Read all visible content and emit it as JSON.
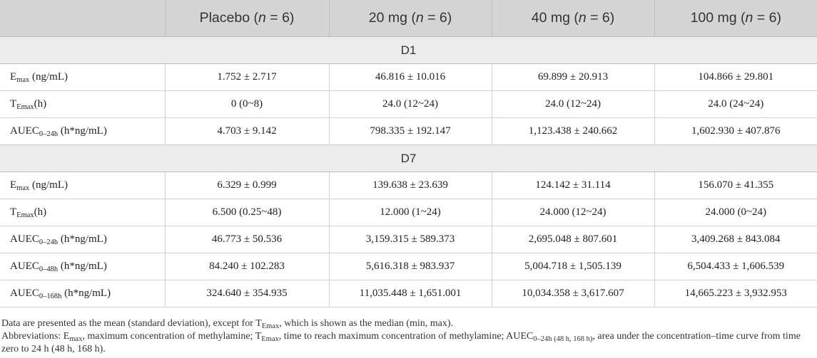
{
  "header": {
    "blank": "",
    "cols": [
      {
        "label": "Placebo (",
        "n": "n",
        "rest": " = 6)"
      },
      {
        "label": "20 mg (",
        "n": "n",
        "rest": " = 6)"
      },
      {
        "label": "40 mg (",
        "n": "n",
        "rest": " = 6)"
      },
      {
        "label": "100 mg (",
        "n": "n",
        "rest": " = 6)"
      }
    ]
  },
  "sections": [
    {
      "title": "D1",
      "rows": [
        {
          "base": "E",
          "sub": "max",
          "unit": " (ng/mL)",
          "values": [
            "1.752 ± 2.717",
            "46.816 ± 10.016",
            "69.899 ± 20.913",
            "104.866 ± 29.801"
          ]
        },
        {
          "base": "T",
          "sub": "Emax",
          "unit": "(h)",
          "values": [
            "0 (0~8)",
            "24.0 (12~24)",
            "24.0 (12~24)",
            "24.0 (24~24)"
          ]
        },
        {
          "base": "AUEC",
          "sub": "0–24h",
          "unit": " (h*ng/mL)",
          "values": [
            "4.703 ± 9.142",
            "798.335 ± 192.147",
            "1,123.438 ± 240.662",
            "1,602.930 ± 407.876"
          ]
        }
      ]
    },
    {
      "title": "D7",
      "rows": [
        {
          "base": "E",
          "sub": "max",
          "unit": " (ng/mL)",
          "values": [
            "6.329 ± 0.999",
            "139.638 ± 23.639",
            "124.142 ± 31.114",
            "156.070 ± 41.355"
          ]
        },
        {
          "base": "T",
          "sub": "Emax",
          "unit": "(h)",
          "values": [
            "6.500 (0.25~48)",
            "12.000 (1~24)",
            "24.000 (12~24)",
            "24.000 (0~24)"
          ]
        },
        {
          "base": "AUEC",
          "sub": "0–24h",
          "unit": " (h*ng/mL)",
          "values": [
            "46.773 ± 50.536",
            "3,159.315 ± 589.373",
            "2,695.048 ± 807.601",
            "3,409.268 ± 843.084"
          ]
        },
        {
          "base": "AUEC",
          "sub": "0–48h",
          "unit": " (h*ng/mL)",
          "values": [
            "84.240 ± 102.283",
            "5,616.318 ± 983.937",
            "5,004.718 ± 1,505.139",
            "6,504.433 ± 1,606.539"
          ]
        },
        {
          "base": "AUEC",
          "sub": "0–168h",
          "unit": " (h*ng/mL)",
          "values": [
            "324.640 ± 354.935",
            "11,035.448 ± 1,651.001",
            "10,034.358 ± 3,617.607",
            "14,665.223 ± 3,932.953"
          ]
        }
      ]
    }
  ],
  "footnotes": {
    "line1": {
      "a": "Data are presented as the mean (standard deviation), except for T",
      "a_sub": "Emax",
      "b": ", which is shown as the median (min, max)."
    },
    "line2": {
      "p1": "Abbreviations: E",
      "s1": "max",
      "p2": ", maximum concentration of methylamine; T",
      "s2": "Emax",
      "p3": ", time to reach maximum concentration of methylamine; AUEC",
      "s3": "0–24h (48 h, 168 h)",
      "p4": ", area under the concentration–time curve from time zero to 24 h (48 h, 168 h)."
    }
  }
}
